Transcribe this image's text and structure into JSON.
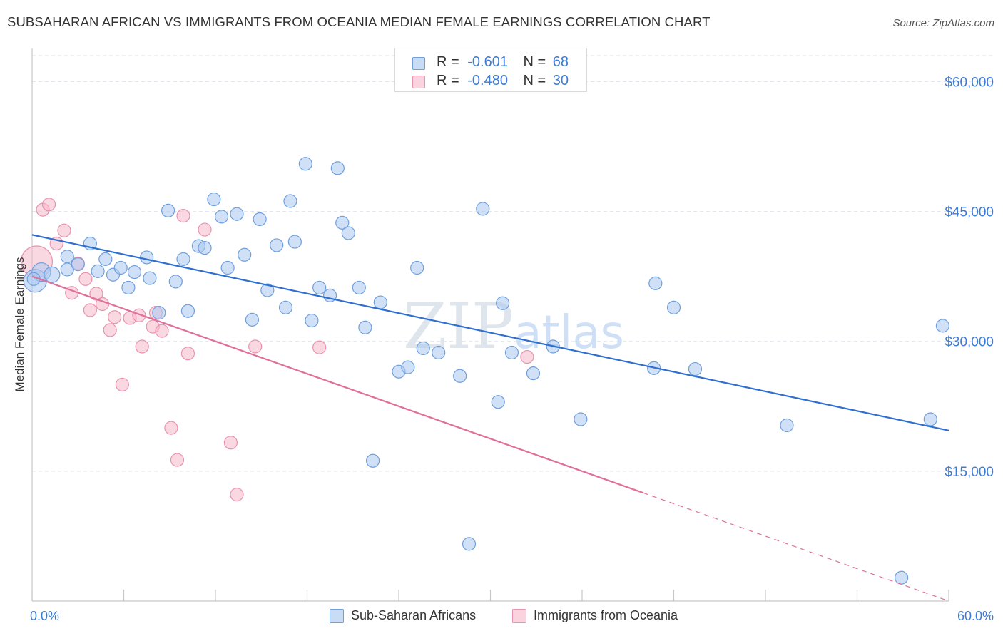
{
  "title": "SUBSAHARAN AFRICAN VS IMMIGRANTS FROM OCEANIA MEDIAN FEMALE EARNINGS CORRELATION CHART",
  "source": "Source: ZipAtlas.com",
  "watermark": "ZIPatlas",
  "legend_top": [
    {
      "r_label": "R =",
      "r_value": "-0.601",
      "n_label": "N =",
      "n_value": "68"
    },
    {
      "r_label": "R =",
      "r_value": "-0.480",
      "n_label": "N =",
      "n_value": "30"
    }
  ],
  "colors": {
    "blue_fill": "#a9c8f0",
    "blue_stroke": "#6f9fdc",
    "blue_line": "#2f6fd0",
    "pink_fill": "#f6b8cb",
    "pink_stroke": "#e892ad",
    "pink_line": "#e0709a",
    "axis_text": "#3d7bd8",
    "grid": "#dde3ea"
  },
  "chart_data": {
    "type": "scatter",
    "title": "SUBSAHARAN AFRICAN VS IMMIGRANTS FROM OCEANIA MEDIAN FEMALE EARNINGS CORRELATION CHART",
    "xlabel": "",
    "ylabel": "Median Female Earnings",
    "xlim": [
      0,
      60
    ],
    "ylim": [
      0,
      63000
    ],
    "x_tick_labels": [
      "0.0%",
      "60.0%"
    ],
    "y_ticks": [
      15000,
      30000,
      45000,
      60000
    ],
    "y_tick_labels": [
      "$15,000",
      "$30,000",
      "$45,000",
      "$60,000"
    ],
    "grid": true,
    "legend_position": "bottom",
    "series": [
      {
        "name": "Sub-Saharan Africans",
        "color": "#6f9fdc",
        "r": -0.601,
        "n": 68,
        "trend": {
          "x": [
            0,
            60
          ],
          "y": [
            42300,
            19700
          ],
          "dashed_from": null
        },
        "points": [
          [
            0.2,
            37000
          ],
          [
            0.6,
            38000
          ],
          [
            1.3,
            37700
          ],
          [
            2.3,
            38300
          ],
          [
            2.3,
            39800
          ],
          [
            3.0,
            38900
          ],
          [
            3.8,
            41300
          ],
          [
            4.3,
            38100
          ],
          [
            4.8,
            39500
          ],
          [
            5.3,
            37700
          ],
          [
            5.8,
            38500
          ],
          [
            6.3,
            36200
          ],
          [
            6.7,
            38000
          ],
          [
            7.5,
            39700
          ],
          [
            7.7,
            37300
          ],
          [
            8.3,
            33300
          ],
          [
            8.9,
            45100
          ],
          [
            9.4,
            36900
          ],
          [
            9.9,
            39500
          ],
          [
            10.2,
            33500
          ],
          [
            10.9,
            41000
          ],
          [
            11.3,
            40800
          ],
          [
            11.9,
            46400
          ],
          [
            12.4,
            44400
          ],
          [
            12.8,
            38500
          ],
          [
            13.4,
            44700
          ],
          [
            13.9,
            40000
          ],
          [
            14.4,
            32500
          ],
          [
            14.9,
            44100
          ],
          [
            15.4,
            35900
          ],
          [
            16.0,
            41100
          ],
          [
            16.6,
            33900
          ],
          [
            16.9,
            46200
          ],
          [
            17.2,
            41500
          ],
          [
            17.9,
            50500
          ],
          [
            18.3,
            32400
          ],
          [
            18.8,
            36200
          ],
          [
            19.5,
            35300
          ],
          [
            20.0,
            50000
          ],
          [
            20.3,
            43700
          ],
          [
            20.7,
            42500
          ],
          [
            21.4,
            36200
          ],
          [
            21.8,
            31600
          ],
          [
            22.3,
            16200
          ],
          [
            22.8,
            34500
          ],
          [
            24.0,
            26500
          ],
          [
            24.6,
            27000
          ],
          [
            25.2,
            38500
          ],
          [
            25.6,
            29200
          ],
          [
            26.6,
            28700
          ],
          [
            28.0,
            26000
          ],
          [
            28.6,
            6600
          ],
          [
            29.5,
            45300
          ],
          [
            30.5,
            23000
          ],
          [
            30.8,
            34400
          ],
          [
            31.4,
            28700
          ],
          [
            32.8,
            26300
          ],
          [
            34.1,
            29400
          ],
          [
            35.9,
            21000
          ],
          [
            40.7,
            26900
          ],
          [
            40.8,
            36700
          ],
          [
            42.0,
            33900
          ],
          [
            43.4,
            26800
          ],
          [
            49.4,
            20300
          ],
          [
            56.9,
            2700
          ],
          [
            58.8,
            21000
          ],
          [
            59.6,
            31800
          ],
          [
            0.1,
            37200
          ]
        ],
        "point_radius": [
          16,
          13,
          11,
          9,
          9,
          9,
          9,
          9,
          9,
          9,
          9,
          9,
          9,
          9,
          9,
          9,
          9,
          9,
          9,
          9,
          9,
          9,
          9,
          9,
          9,
          9,
          9,
          9,
          9,
          9,
          9,
          9,
          9,
          9,
          9,
          9,
          9,
          9,
          9,
          9,
          9,
          9,
          9,
          9,
          9,
          9,
          9,
          9,
          9,
          9,
          9,
          9,
          9,
          9,
          9,
          9,
          9,
          9,
          9,
          9,
          9,
          9,
          9,
          9,
          9,
          9,
          9,
          9
        ]
      },
      {
        "name": "Immigrants from Oceania",
        "color": "#e892ad",
        "r": -0.48,
        "n": 30,
        "trend": {
          "x": [
            0,
            60
          ],
          "y": [
            37500,
            0
          ],
          "dashed_from": 40.0
        },
        "points": [
          [
            0.3,
            39200
          ],
          [
            0.7,
            45200
          ],
          [
            1.1,
            45800
          ],
          [
            1.6,
            41300
          ],
          [
            2.1,
            42800
          ],
          [
            2.6,
            35600
          ],
          [
            3.0,
            39000
          ],
          [
            3.5,
            37200
          ],
          [
            3.8,
            33600
          ],
          [
            4.2,
            35500
          ],
          [
            4.6,
            34300
          ],
          [
            5.1,
            31300
          ],
          [
            5.4,
            32800
          ],
          [
            5.9,
            25000
          ],
          [
            6.4,
            32700
          ],
          [
            7.0,
            33000
          ],
          [
            7.2,
            29400
          ],
          [
            7.9,
            31700
          ],
          [
            8.1,
            33300
          ],
          [
            8.5,
            31200
          ],
          [
            9.1,
            20000
          ],
          [
            9.5,
            16300
          ],
          [
            9.9,
            44500
          ],
          [
            10.2,
            28600
          ],
          [
            11.3,
            42900
          ],
          [
            13.0,
            18300
          ],
          [
            13.4,
            12300
          ],
          [
            14.6,
            29400
          ],
          [
            18.8,
            29300
          ],
          [
            32.4,
            28200
          ]
        ],
        "point_radius": [
          22,
          9,
          9,
          9,
          9,
          9,
          9,
          9,
          9,
          9,
          9,
          9,
          9,
          9,
          9,
          9,
          9,
          9,
          9,
          9,
          9,
          9,
          9,
          9,
          9,
          9,
          9,
          9,
          9,
          9
        ]
      }
    ]
  }
}
